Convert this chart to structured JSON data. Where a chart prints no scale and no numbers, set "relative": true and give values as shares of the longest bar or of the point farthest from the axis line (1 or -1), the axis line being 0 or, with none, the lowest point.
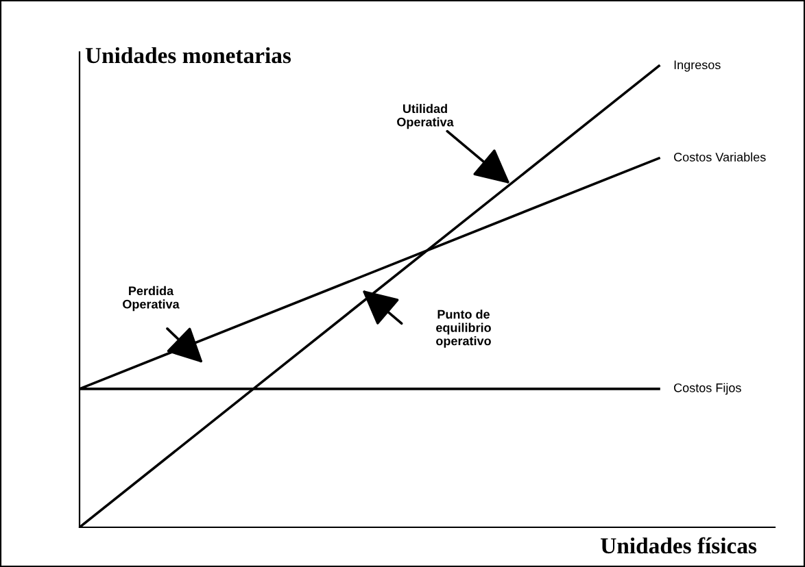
{
  "chart_data": {
    "type": "line",
    "relative": true,
    "xlabel": "Unidades físicas",
    "ylabel": "Unidades monetarias",
    "categories": [
      null,
      null
    ],
    "series": [
      {
        "name": "Ingresos",
        "color": "#000000",
        "values": [
          0,
          1
        ]
      },
      {
        "name": "Costos Variables",
        "color": "#000000",
        "values": [
          0.3,
          0.8
        ]
      },
      {
        "name": "Costos Fijos",
        "color": "#000000",
        "values": [
          0.3,
          0.3
        ]
      }
    ],
    "annotations": [
      "Utilidad\nOperativa",
      "Perdida\nOperativa",
      "Punto de\nequilibrio\noperativo"
    ],
    "grid": false,
    "legend": false,
    "marker": "none",
    "line_style": "solid"
  }
}
